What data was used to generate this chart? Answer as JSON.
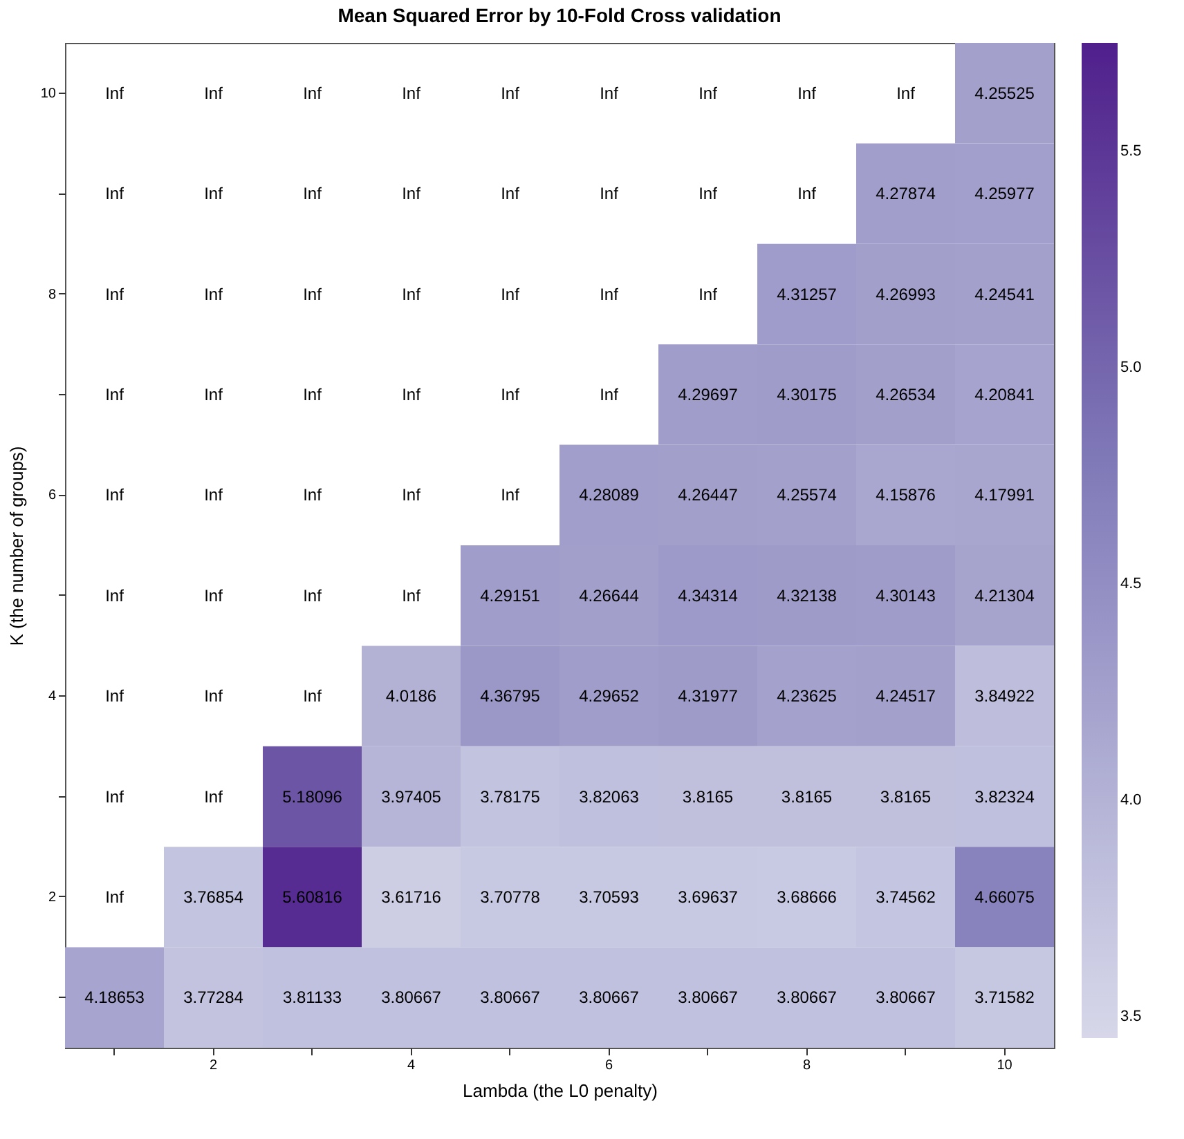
{
  "chart_data": {
    "type": "heatmap",
    "title": "Mean Squared Error by 10-Fold Cross validation",
    "xlabel": "Lambda (the L0 penalty)",
    "ylabel": "K (the number of groups)",
    "categories": [
      null,
      "2",
      null,
      "4",
      null,
      "6",
      null,
      "8",
      null,
      "10"
    ],
    "y_categories": [
      "10",
      null,
      "8",
      null,
      "6",
      null,
      "4",
      null,
      "2",
      null
    ],
    "cells": [
      [
        null,
        null,
        null,
        null,
        null,
        null,
        null,
        null,
        null,
        4.25525
      ],
      [
        null,
        null,
        null,
        null,
        null,
        null,
        null,
        null,
        4.27874,
        4.25977
      ],
      [
        null,
        null,
        null,
        null,
        null,
        null,
        null,
        4.31257,
        4.26993,
        4.24541
      ],
      [
        null,
        null,
        null,
        null,
        null,
        null,
        4.29697,
        4.30175,
        4.26534,
        4.20841
      ],
      [
        null,
        null,
        null,
        null,
        null,
        4.28089,
        4.26447,
        4.25574,
        4.15876,
        4.17991
      ],
      [
        null,
        null,
        null,
        null,
        4.29151,
        4.26644,
        4.34314,
        4.32138,
        4.30143,
        4.21304
      ],
      [
        null,
        null,
        null,
        4.0186,
        4.36795,
        4.29652,
        4.31977,
        4.23625,
        4.24517,
        3.84922
      ],
      [
        null,
        null,
        5.18096,
        3.97405,
        3.78175,
        3.82063,
        3.8165,
        3.8165,
        3.8165,
        3.82324
      ],
      [
        null,
        3.76854,
        5.60816,
        3.61716,
        3.70778,
        3.70593,
        3.69637,
        3.68666,
        3.74562,
        4.66075
      ],
      [
        4.18653,
        3.77284,
        3.81133,
        3.80667,
        3.80667,
        3.80667,
        3.80667,
        3.80667,
        3.80667,
        3.71582
      ]
    ],
    "cell_labels": [
      [
        "Inf",
        "Inf",
        "Inf",
        "Inf",
        "Inf",
        "Inf",
        "Inf",
        "Inf",
        "Inf",
        "4.25525"
      ],
      [
        "Inf",
        "Inf",
        "Inf",
        "Inf",
        "Inf",
        "Inf",
        "Inf",
        "Inf",
        "4.27874",
        "4.25977"
      ],
      [
        "Inf",
        "Inf",
        "Inf",
        "Inf",
        "Inf",
        "Inf",
        "Inf",
        "4.31257",
        "4.26993",
        "4.24541"
      ],
      [
        "Inf",
        "Inf",
        "Inf",
        "Inf",
        "Inf",
        "Inf",
        "4.29697",
        "4.30175",
        "4.26534",
        "4.20841"
      ],
      [
        "Inf",
        "Inf",
        "Inf",
        "Inf",
        "Inf",
        "4.28089",
        "4.26447",
        "4.25574",
        "4.15876",
        "4.17991"
      ],
      [
        "Inf",
        "Inf",
        "Inf",
        "Inf",
        "4.29151",
        "4.26644",
        "4.34314",
        "4.32138",
        "4.30143",
        "4.21304"
      ],
      [
        "Inf",
        "Inf",
        "Inf",
        "4.0186",
        "4.36795",
        "4.29652",
        "4.31977",
        "4.23625",
        "4.24517",
        "3.84922"
      ],
      [
        "Inf",
        "Inf",
        "5.18096",
        "3.97405",
        "3.78175",
        "3.82063",
        "3.8165",
        "3.8165",
        "3.8165",
        "3.82324"
      ],
      [
        "Inf",
        "3.76854",
        "5.60816",
        "3.61716",
        "3.70778",
        "3.70593",
        "3.69637",
        "3.68666",
        "3.74562",
        "4.66075"
      ],
      [
        "4.18653",
        "3.77284",
        "3.81133",
        "3.80667",
        "3.80667",
        "3.80667",
        "3.80667",
        "3.80667",
        "3.80667",
        "3.71582"
      ]
    ],
    "data_labels": true,
    "clim": [
      3.45,
      5.75
    ],
    "cticks": [
      3.5,
      {
        "value": 4,
        "label": "4.0"
      },
      4.5,
      {
        "value": 5,
        "label": "5.0"
      },
      5.5
    ]
  }
}
